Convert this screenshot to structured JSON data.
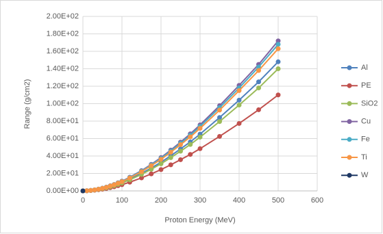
{
  "chart_data": {
    "type": "line",
    "x_label": "Proton Energy (MeV)",
    "y_label": "Range (g/cm2)",
    "x": [
      0,
      10,
      20,
      30,
      40,
      50,
      60,
      70,
      80,
      90,
      100,
      120,
      150,
      175,
      200,
      225,
      250,
      275,
      300,
      350,
      400,
      450,
      500
    ],
    "series": [
      {
        "name": "Al",
        "color": "#4f81bd",
        "values": [
          0,
          0.15,
          0.49,
          1.04,
          1.78,
          2.66,
          3.7,
          5.03,
          6.36,
          7.99,
          9.62,
          13.5,
          20,
          26.2,
          32.9,
          40.3,
          48.1,
          56.2,
          65.1,
          84.1,
          104,
          125,
          148
        ]
      },
      {
        "name": "PE",
        "color": "#c0504d",
        "values": [
          0,
          0.11,
          0.36,
          0.77,
          1.32,
          1.98,
          2.75,
          3.74,
          4.73,
          5.94,
          7.15,
          10,
          14.9,
          19.5,
          24.4,
          29.9,
          35.8,
          41.8,
          48.4,
          62.5,
          77.3,
          93,
          110
        ]
      },
      {
        "name": "SiO2",
        "color": "#9bbb59",
        "values": [
          0,
          0.14,
          0.46,
          0.98,
          1.68,
          2.52,
          3.5,
          4.76,
          6.02,
          7.56,
          9.1,
          12.7,
          18.9,
          24.8,
          31.1,
          38.1,
          45.5,
          53.2,
          61.6,
          79.5,
          98.4,
          118,
          140
        ]
      },
      {
        "name": "Cu",
        "color": "#8064a2",
        "values": [
          0,
          0.17,
          0.57,
          1.2,
          2.06,
          3.1,
          4.3,
          5.85,
          7.4,
          9.29,
          11.2,
          15.7,
          23.2,
          30.4,
          38.2,
          46.8,
          55.9,
          65.4,
          75.7,
          97.7,
          121,
          145,
          172
        ]
      },
      {
        "name": "Fe",
        "color": "#4bacc6",
        "values": [
          0,
          0.17,
          0.55,
          1.18,
          2.02,
          3.02,
          4.2,
          5.71,
          7.22,
          9.07,
          10.9,
          15.3,
          22.7,
          29.7,
          37.3,
          45.7,
          54.6,
          63.8,
          73.9,
          95.4,
          118,
          142,
          168
        ]
      },
      {
        "name": "Ti",
        "color": "#f79646",
        "values": [
          0,
          0.16,
          0.54,
          1.14,
          1.96,
          2.93,
          4.08,
          5.54,
          7.01,
          8.8,
          10.6,
          14.8,
          22,
          28.9,
          36.2,
          44.3,
          53,
          61.9,
          71.7,
          92.6,
          115,
          138,
          163
        ]
      },
      {
        "name": "W",
        "color": "#1f3864",
        "values": [
          0,
          null,
          null,
          null,
          null,
          null,
          null,
          null,
          null,
          null,
          null,
          null,
          null,
          null,
          null,
          null,
          null,
          null,
          null,
          null,
          null,
          null,
          null
        ]
      }
    ],
    "xlim": [
      0,
      600
    ],
    "xticks": [
      0,
      100,
      200,
      300,
      400,
      500,
      600
    ],
    "ylim": [
      0,
      200
    ],
    "yticks": [
      {
        "value": 0,
        "label": "0.00E+00"
      },
      {
        "value": 20,
        "label": "2.00E+01"
      },
      {
        "value": 40,
        "label": "4.00E+01"
      },
      {
        "value": 60,
        "label": "6.00E+01"
      },
      {
        "value": 80,
        "label": "8.00E+01"
      },
      {
        "value": 100,
        "label": "1.00E+02"
      },
      {
        "value": 120,
        "label": "1.20E+02"
      },
      {
        "value": 140,
        "label": "1.40E+02"
      },
      {
        "value": 160,
        "label": "1.60E+02"
      },
      {
        "value": 180,
        "label": "1.80E+02"
      },
      {
        "value": 200,
        "label": "2.00E+02"
      }
    ],
    "grid": true,
    "legend": "right"
  }
}
